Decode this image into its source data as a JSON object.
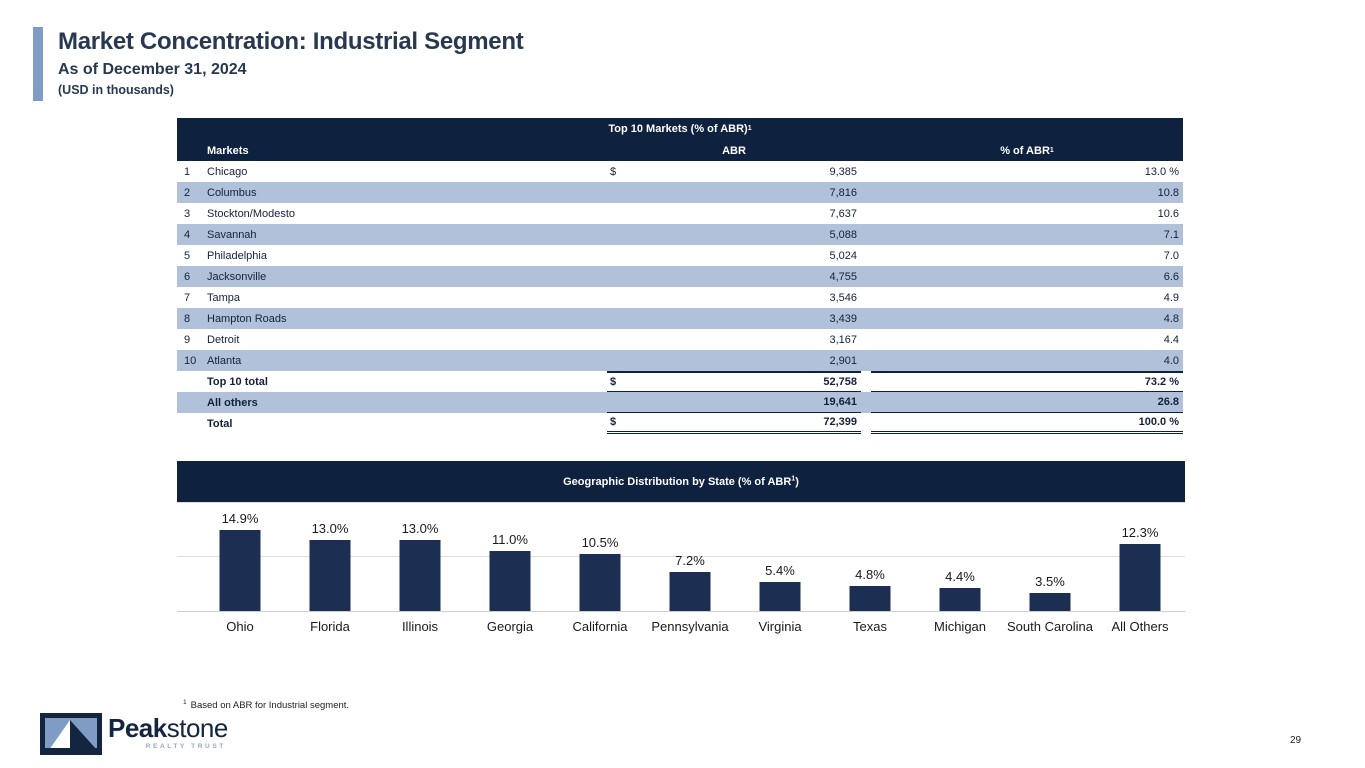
{
  "header": {
    "title": "Market Concentration: Industrial Segment",
    "subtitle": "As of December 31, 2024",
    "units": "(USD in thousands)"
  },
  "table": {
    "title": "Top 10 Markets (% of ABR)",
    "title_sup": "1",
    "col_markets": "Markets",
    "col_abr": "ABR",
    "col_pct": "% of ABR",
    "col_pct_sup": "1",
    "rows": [
      {
        "rank": "1",
        "market": "Chicago",
        "currency": "$",
        "abr": "9,385",
        "pct": "13.0 %"
      },
      {
        "rank": "2",
        "market": "Columbus",
        "currency": "",
        "abr": "7,816",
        "pct": "10.8"
      },
      {
        "rank": "3",
        "market": "Stockton/Modesto",
        "currency": "",
        "abr": "7,637",
        "pct": "10.6"
      },
      {
        "rank": "4",
        "market": "Savannah",
        "currency": "",
        "abr": "5,088",
        "pct": "7.1"
      },
      {
        "rank": "5",
        "market": "Philadelphia",
        "currency": "",
        "abr": "5,024",
        "pct": "7.0"
      },
      {
        "rank": "6",
        "market": "Jacksonville",
        "currency": "",
        "abr": "4,755",
        "pct": "6.6"
      },
      {
        "rank": "7",
        "market": "Tampa",
        "currency": "",
        "abr": "3,546",
        "pct": "4.9"
      },
      {
        "rank": "8",
        "market": "Hampton Roads",
        "currency": "",
        "abr": "3,439",
        "pct": "4.8"
      },
      {
        "rank": "9",
        "market": "Detroit",
        "currency": "",
        "abr": "3,167",
        "pct": "4.4"
      },
      {
        "rank": "10",
        "market": "Atlanta",
        "currency": "",
        "abr": "2,901",
        "pct": "4.0"
      }
    ],
    "totals": [
      {
        "label": "Top 10 total",
        "currency": "$",
        "abr": "52,758",
        "pct": "73.2 %",
        "style": "subtotal"
      },
      {
        "label": "All others",
        "currency": "",
        "abr": "19,641",
        "pct": "26.8",
        "style": "shaded"
      },
      {
        "label": "Total",
        "currency": "$",
        "abr": "72,399",
        "pct": "100.0 %",
        "style": "grand"
      }
    ]
  },
  "chart_data": {
    "type": "bar",
    "title_prefix": "Geographic Distribution by State (% of ABR",
    "title_sup": "1",
    "title_suffix": ")",
    "categories": [
      "Ohio",
      "Florida",
      "Illinois",
      "Georgia",
      "California",
      "Pennsylvania",
      "Virginia",
      "Texas",
      "Michigan",
      "South Carolina",
      "All Others"
    ],
    "values": [
      14.9,
      13.0,
      13.0,
      11.0,
      10.5,
      7.2,
      5.4,
      4.8,
      4.4,
      3.5,
      12.3
    ],
    "labels": [
      "14.9%",
      "13.0%",
      "13.0%",
      "11.0%",
      "10.5%",
      "7.2%",
      "5.4%",
      "4.8%",
      "4.4%",
      "3.5%",
      "12.3%"
    ],
    "xlabel": "",
    "ylabel": "",
    "ylim": [
      0,
      20
    ],
    "gridlines": [
      10,
      20
    ],
    "grid": true,
    "legend": "none",
    "bar_color": "#1c2e52"
  },
  "footnote": {
    "sup": "1",
    "text": "Based on ABR for Industrial segment."
  },
  "logo": {
    "name_bold": "Peak",
    "name_light": "stone",
    "tagline": "REALTY TRUST"
  },
  "page_number": "29",
  "colors": {
    "navy": "#0e2240",
    "bar-navy": "#1c2e52",
    "stripe": "#b0c1d9",
    "accent": "#7f9dc4",
    "title-ink": "#273850"
  }
}
